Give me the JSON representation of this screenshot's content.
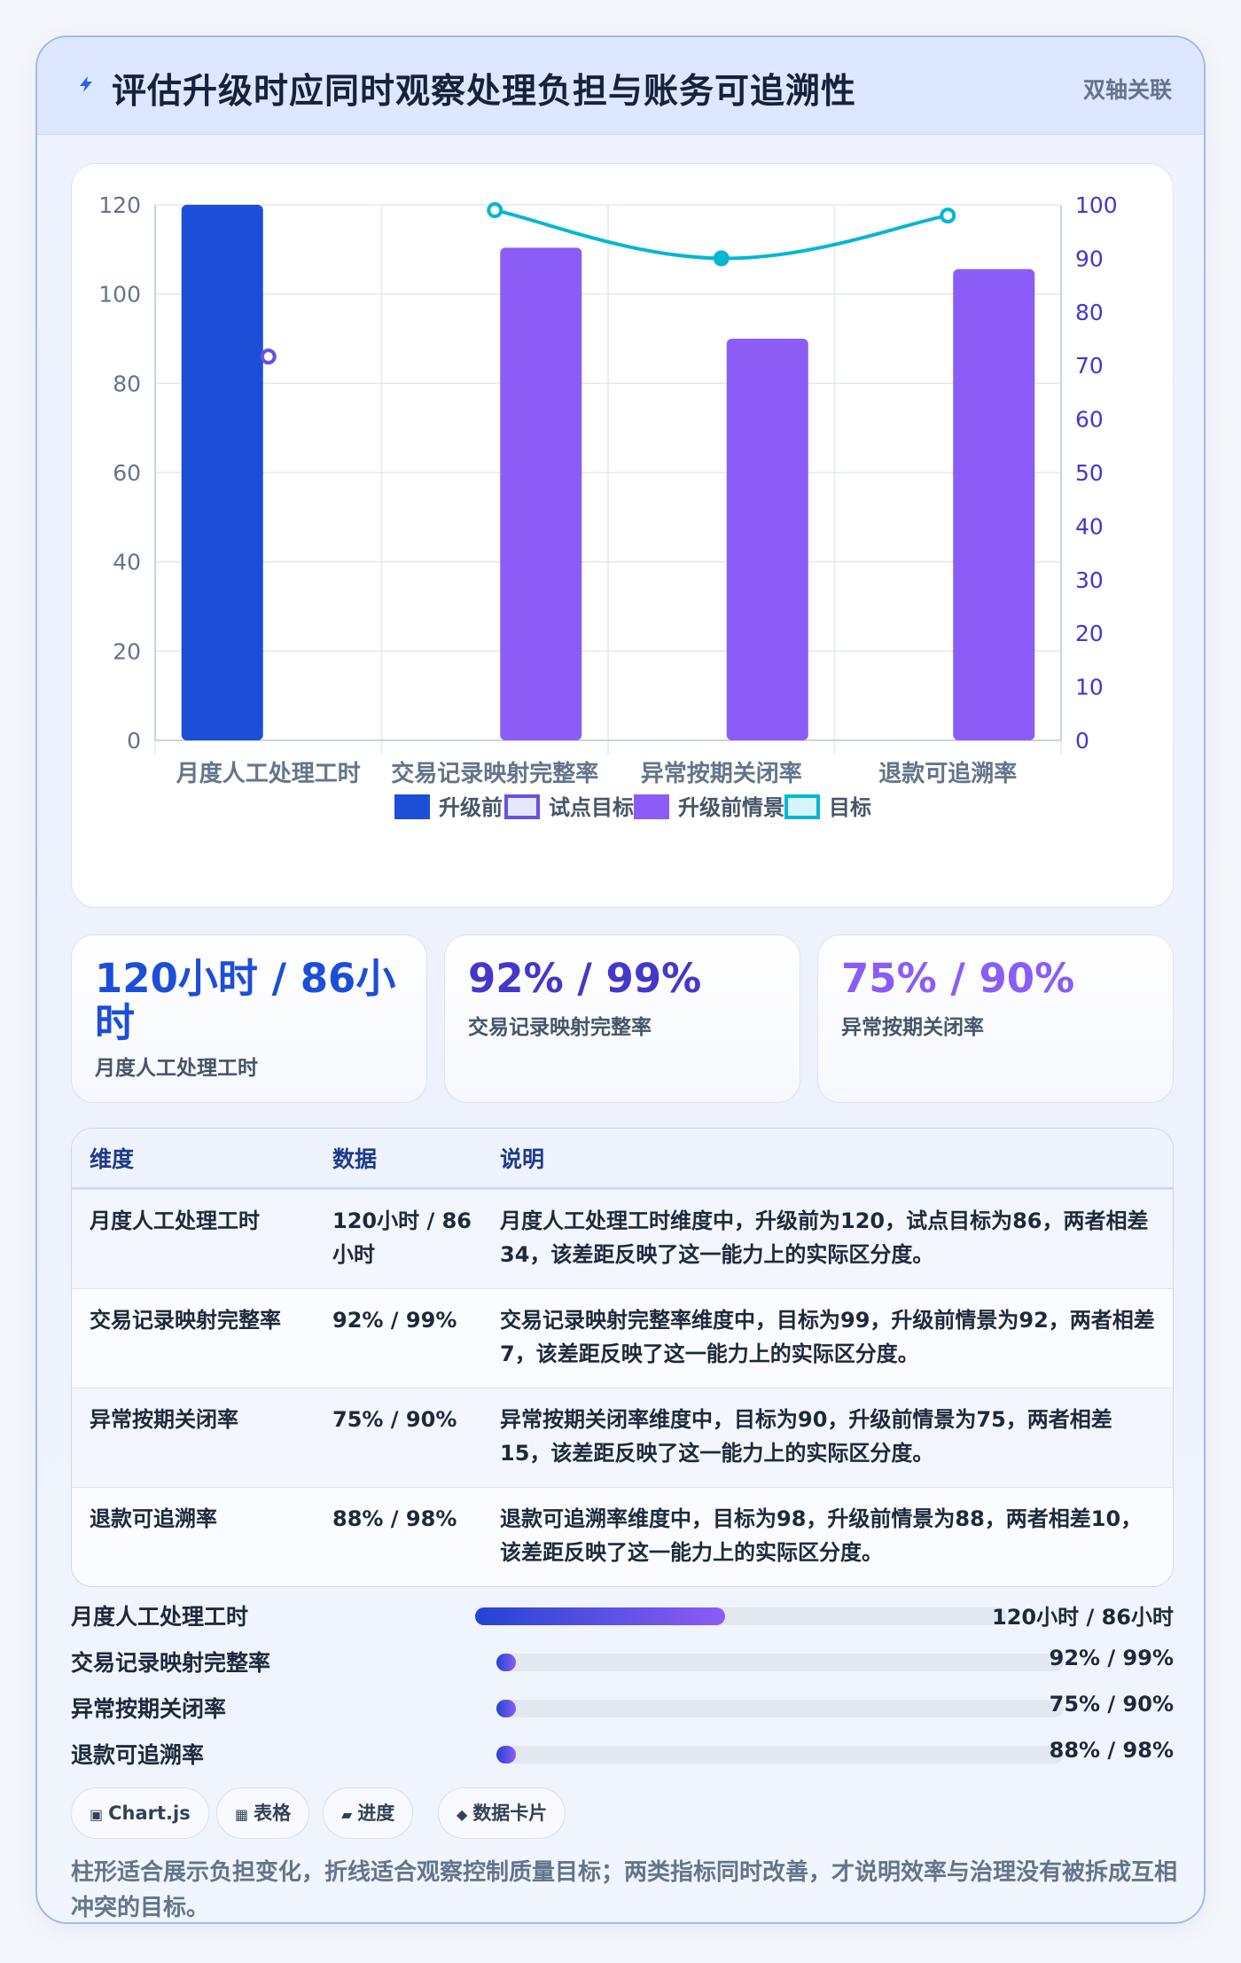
{
  "header": {
    "title": "评估升级时应同时观察处理负担与账务可追溯性",
    "tag": "双轴关联"
  },
  "colors": {
    "bar_before": "#1d4ed8",
    "bar_scenario": "#8b5cf6",
    "line_target": "#06b6d4",
    "pilot_target": "#6d4fe0"
  },
  "chart_data": {
    "type": "bar",
    "categories": [
      "月度人工处理工时",
      "交易记录映射完整率",
      "异常按期关闭率",
      "退款可追溯率"
    ],
    "series": [
      {
        "name": "升级前",
        "type": "bar",
        "axis": "left",
        "values": [
          120,
          null,
          null,
          null
        ]
      },
      {
        "name": "试点目标",
        "type": "point",
        "axis": "left",
        "values": [
          86,
          null,
          null,
          null
        ]
      },
      {
        "name": "升级前情景",
        "type": "bar",
        "axis": "right",
        "values": [
          null,
          92,
          75,
          88
        ]
      },
      {
        "name": "目标",
        "type": "line",
        "axis": "right",
        "values": [
          null,
          99,
          90,
          98
        ]
      }
    ],
    "y_left": {
      "min": 0,
      "max": 120,
      "ticks": [
        "0",
        "20",
        "40",
        "60",
        "80",
        "100",
        "120"
      ]
    },
    "y_right": {
      "min": 0,
      "max": 100,
      "ticks": [
        "0",
        "10",
        "20",
        "30",
        "40",
        "50",
        "60",
        "70",
        "80",
        "90",
        "100"
      ]
    },
    "grid": true,
    "legend_position": "bottom"
  },
  "kpis": [
    {
      "value": "120小时 / 86小时",
      "label": "月度人工处理工时",
      "color": "#1d4ed8"
    },
    {
      "value": "92% / 99%",
      "label": "交易记录映射完整率",
      "color": "#4338ca"
    },
    {
      "value": "75% / 90%",
      "label": "异常按期关闭率",
      "color": "#8b5cf6"
    }
  ],
  "table": {
    "headers": [
      "维度",
      "数据",
      "说明"
    ],
    "rows": [
      {
        "dim": "月度人工处理工时",
        "data": "120小时 / 86小时",
        "desc": "月度人工处理工时维度中，升级前为120，试点目标为86，两者相差34，该差距反映了这一能力上的实际区分度。"
      },
      {
        "dim": "交易记录映射完整率",
        "data": "92% / 99%",
        "desc": "交易记录映射完整率维度中，目标为99，升级前情景为92，两者相差7，该差距反映了这一能力上的实际区分度。"
      },
      {
        "dim": "异常按期关闭率",
        "data": "75% / 90%",
        "desc": "异常按期关闭率维度中，目标为90，升级前情景为75，两者相差15，该差距反映了这一能力上的实际区分度。"
      },
      {
        "dim": "退款可追溯率",
        "data": "88% / 98%",
        "desc": "退款可追溯率维度中，目标为98，升级前情景为88，两者相差10，该差距反映了这一能力上的实际区分度。"
      }
    ]
  },
  "progress": [
    {
      "label": "月度人工处理工时",
      "value": "120小时 / 86小时",
      "fill_fraction": 0.47
    },
    {
      "label": "交易记录映射完整率",
      "value": "92% / 99%",
      "fill_fraction": 0.035
    },
    {
      "label": "异常按期关闭率",
      "value": "75% / 90%",
      "fill_fraction": 0.035
    },
    {
      "label": "退款可追溯率",
      "value": "88% / 98%",
      "fill_fraction": 0.035
    }
  ],
  "chips": [
    {
      "icon": "▣",
      "icon_name": "chart-icon",
      "label": "Chart.js"
    },
    {
      "icon": "▦",
      "icon_name": "table-icon",
      "label": "表格"
    },
    {
      "icon": "▰",
      "icon_name": "progress-icon",
      "label": "进度"
    },
    {
      "icon": "◆",
      "icon_name": "card-icon",
      "label": "数据卡片"
    }
  ],
  "footer": "柱形适合展示负担变化，折线适合观察控制质量目标；两类指标同时改善，才说明效率与治理没有被拆成互相冲突的目标。"
}
